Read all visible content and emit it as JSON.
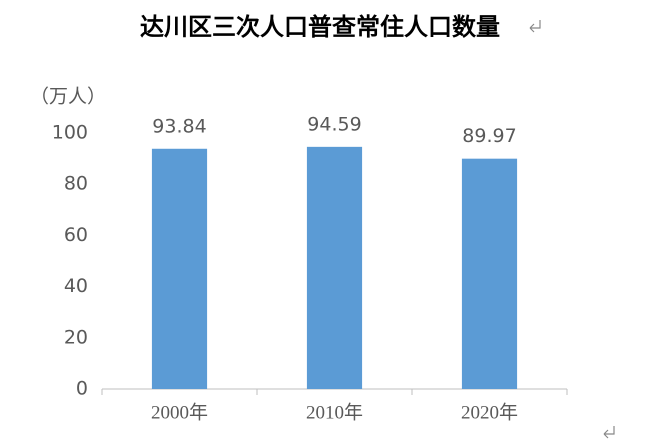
{
  "chart_data": {
    "type": "bar",
    "title": "达川区三次人口普查常住人口数量",
    "y_label": "（万人）",
    "categories": [
      "2000年",
      "2010年",
      "2020年"
    ],
    "values": [
      93.84,
      94.59,
      89.97
    ],
    "color": "#5b9bd5",
    "ylim": [
      0,
      100
    ],
    "yticks": [
      0,
      20,
      40,
      60,
      80,
      100
    ],
    "grid": false,
    "value_labels_shown": true
  }
}
